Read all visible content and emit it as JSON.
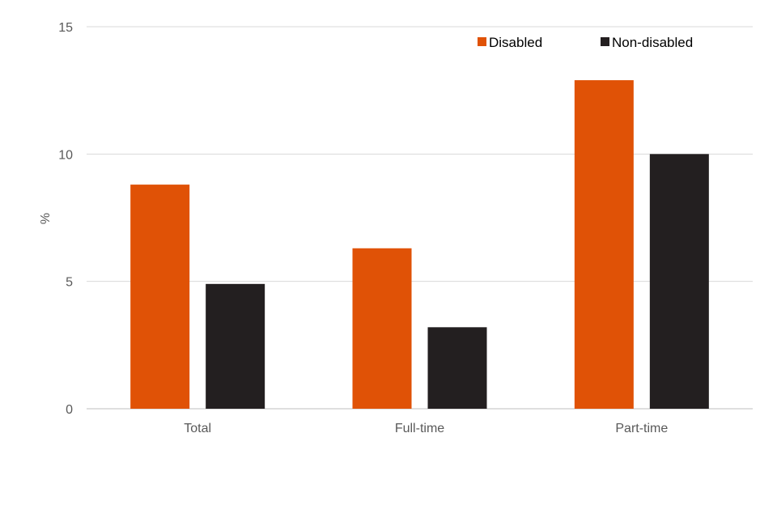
{
  "chart_data": {
    "type": "bar",
    "categories": [
      "Total",
      "Full-time",
      "Part-time"
    ],
    "series": [
      {
        "name": "Disabled",
        "values": [
          8.8,
          6.3,
          12.9
        ],
        "color": "#e05206"
      },
      {
        "name": "Non-disabled",
        "values": [
          4.9,
          3.2,
          10.0
        ],
        "color": "#231f20"
      }
    ],
    "title": "",
    "xlabel": "",
    "ylabel": "%",
    "ylim": [
      0,
      15
    ],
    "yticks": [
      0,
      5,
      10,
      15
    ],
    "grid": true,
    "legend_position": "top-right"
  }
}
